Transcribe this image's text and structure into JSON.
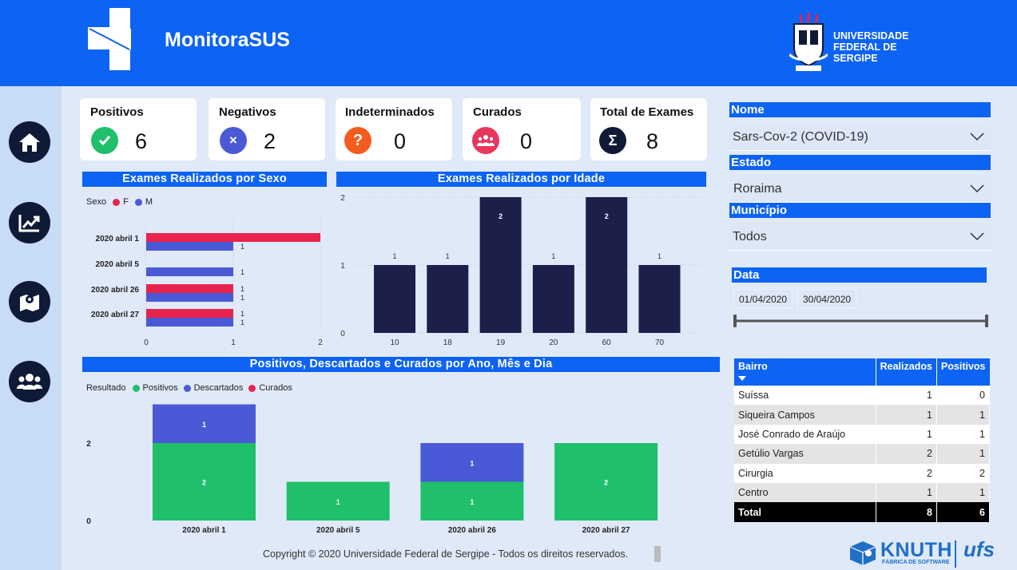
{
  "app": {
    "title": "MonitoraSUS"
  },
  "university": {
    "line1": "UNIVERSIDADE",
    "line2": "FEDERAL DE",
    "line3": "SERGIPE"
  },
  "nav": [
    {
      "icon": "home-icon"
    },
    {
      "icon": "chart-line-icon"
    },
    {
      "icon": "map-icon"
    },
    {
      "icon": "users-icon"
    }
  ],
  "cards": [
    {
      "label": "Positivos",
      "value": "6",
      "color": "#1fbf6c",
      "icon": "check-icon"
    },
    {
      "label": "Negativos",
      "value": "2",
      "color": "#4a5ad6",
      "icon": "x-icon"
    },
    {
      "label": "Indeterminados",
      "value": "0",
      "color": "#f45b1e",
      "icon": "question-icon"
    },
    {
      "label": "Curados",
      "value": "0",
      "color": "#e8365d",
      "icon": "group-icon"
    },
    {
      "label": "Total de Exames",
      "value": "8",
      "color": "#0f1a36",
      "icon": "sigma-icon"
    }
  ],
  "filters": {
    "nome": {
      "label": "Nome",
      "value": "Sars-Cov-2 (COVID-19)"
    },
    "estado": {
      "label": "Estado",
      "value": "Roraima"
    },
    "municipio": {
      "label": "Município",
      "value": "Todos"
    },
    "data": {
      "label": "Data",
      "start": "01/04/2020",
      "end": "30/04/2020"
    }
  },
  "table": {
    "headers": [
      "Bairro",
      "Realizados",
      "Positivos"
    ],
    "rows": [
      [
        "Suíssa",
        "1",
        "0"
      ],
      [
        "Siqueira Campos",
        "1",
        "1"
      ],
      [
        "José Conrado de Araújo",
        "1",
        "1"
      ],
      [
        "Getúlio Vargas",
        "2",
        "1"
      ],
      [
        "Cirurgia",
        "2",
        "2"
      ],
      [
        "Centro",
        "1",
        "1"
      ]
    ],
    "total": [
      "Total",
      "8",
      "6"
    ]
  },
  "copyright": "Copyright © 2020 Universidade Federal de Sergipe - Todos os direitos reservados.",
  "brand": {
    "name": "KNUTH",
    "subtitle": "FÁBRICA DE SOFTWARE",
    "ufs": "ufs"
  },
  "chart_data": [
    {
      "type": "bar",
      "orientation": "horizontal",
      "title": "Exames Realizados por Sexo",
      "legend_title": "Sexo",
      "categories": [
        "2020 abril 1",
        "2020 abril 5",
        "2020 abril 26",
        "2020 abril 27"
      ],
      "series": [
        {
          "name": "F",
          "color": "#e8234d",
          "values": [
            2,
            0,
            1,
            1
          ]
        },
        {
          "name": "M",
          "color": "#4a5ad6",
          "values": [
            1,
            1,
            1,
            1
          ]
        }
      ],
      "xlim": [
        0,
        2
      ],
      "xticks": [
        "0",
        "1",
        "2"
      ]
    },
    {
      "type": "bar",
      "title": "Exames Realizados por Idade",
      "categories": [
        "10",
        "18",
        "19",
        "20",
        "60",
        "70"
      ],
      "values": [
        1,
        1,
        2,
        1,
        2,
        1
      ],
      "color": "#1b1f4a",
      "ylim": [
        0,
        2
      ],
      "yticks": [
        "0",
        "1",
        "2"
      ]
    },
    {
      "type": "bar",
      "stacked": true,
      "title": "Positivos, Descartados e Curados por Ano, Mês e Dia",
      "legend_title": "Resultado",
      "categories": [
        "2020 abril 1",
        "2020 abril 5",
        "2020 abril 26",
        "2020 abril 27"
      ],
      "series": [
        {
          "name": "Positivos",
          "color": "#1fbf6c",
          "values": [
            2,
            1,
            1,
            2
          ]
        },
        {
          "name": "Descartados",
          "color": "#4a5ad6",
          "values": [
            1,
            0,
            1,
            0
          ]
        },
        {
          "name": "Curados",
          "color": "#e8234d",
          "values": [
            0,
            0,
            0,
            0
          ]
        }
      ],
      "ylim": [
        0,
        3
      ],
      "yticks": [
        "0",
        "2"
      ]
    }
  ]
}
